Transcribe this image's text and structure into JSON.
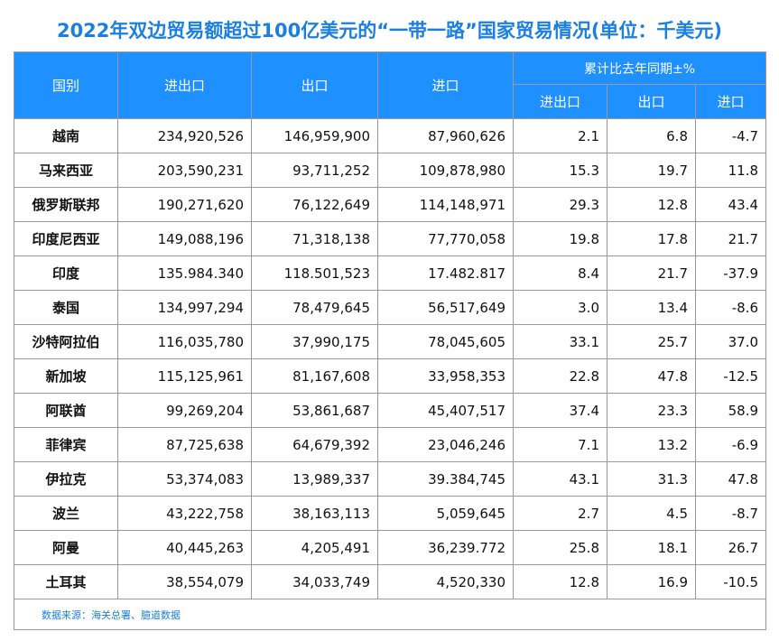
{
  "header": {
    "title": "2022年双边贸易额超过100亿美元的“一带一路”国家贸易情况(单位：千美元)"
  },
  "table": {
    "head": {
      "country": "国别",
      "total": "进出口",
      "export": "出口",
      "import": "进口",
      "growth": "累计比去年同期±%",
      "growth_sub": [
        "进出口",
        "出口",
        "进口"
      ]
    },
    "rows": [
      [
        "越南",
        "234,920,526",
        "146,959,900",
        "87,960,626",
        "2.1",
        "6.8",
        "-4.7"
      ],
      [
        "马来西亚",
        "203,590,231",
        "93,711,252",
        "109,878,980",
        "15.3",
        "19.7",
        "11.8"
      ],
      [
        "俄罗斯联邦",
        "190,271,620",
        "76,122,649",
        "114,148,971",
        "29.3",
        "12.8",
        "43.4"
      ],
      [
        "印度尼西亚",
        "149,088,196",
        "71,318,138",
        "77,770,058",
        "19.8",
        "17.8",
        "21.7"
      ],
      [
        "印度",
        "135.984.340",
        "118.501,523",
        "17.482.817",
        "8.4",
        "21.7",
        "-37.9"
      ],
      [
        "泰国",
        "134,997,294",
        "78,479,645",
        "56,517,649",
        "3.0",
        "13.4",
        "-8.6"
      ],
      [
        "沙特阿拉伯",
        "116,035,780",
        "37,990,175",
        "78,045,605",
        "33.1",
        "25.7",
        "37.0"
      ],
      [
        "新加坡",
        "115,125,961",
        "81,167,608",
        "33,958,353",
        "22.8",
        "47.8",
        "-12.5"
      ],
      [
        "阿联酋",
        "99,269,204",
        "53,861,687",
        "45,407,517",
        "37.4",
        "23.3",
        "58.9"
      ],
      [
        "菲律宾",
        "87,725,638",
        "64,679,392",
        "23,046,246",
        "7.1",
        "13.2",
        "-6.9"
      ],
      [
        "伊拉克",
        "53,374,083",
        "13,989,337",
        "39.384,745",
        "43.1",
        "31.3",
        "47.8"
      ],
      [
        "波兰",
        "43,222,758",
        "38,163,113",
        "5,059,645",
        "2.7",
        "4.5",
        "-8.7"
      ],
      [
        "阿曼",
        "40,445,263",
        "4,205,491",
        "36,239.772",
        "25.8",
        "18.1",
        "26.7"
      ],
      [
        "土耳其",
        "38,554,079",
        "34,033,749",
        "4,520,330",
        "12.8",
        "16.9",
        "-10.5"
      ]
    ]
  },
  "footer": {
    "source": "数据来源：海关总署、臆道数据"
  }
}
